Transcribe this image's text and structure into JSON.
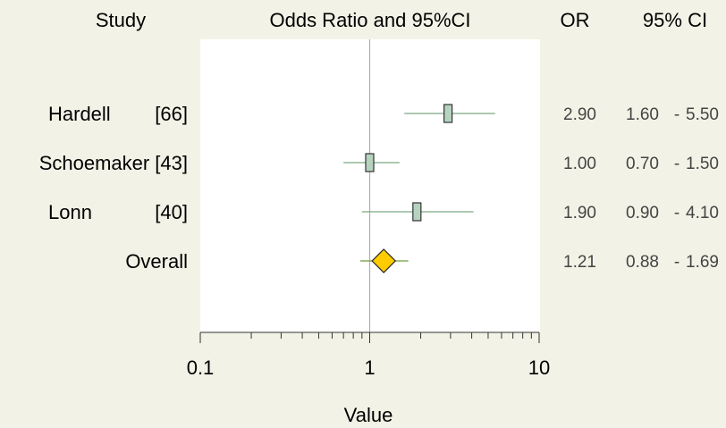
{
  "headers": {
    "study": "Study",
    "plot": "Odds Ratio and 95%CI",
    "or": "OR",
    "ci": "95% CI"
  },
  "chart_data": {
    "type": "forest",
    "xlabel": "Value",
    "x_scale": "log",
    "xlim": [
      0.1,
      10
    ],
    "x_ticks": [
      "0.1",
      "1",
      "10"
    ],
    "reference_line": 1,
    "rows": [
      {
        "study": "Hardell",
        "ref": "[66]",
        "or": 2.9,
        "lo": 1.6,
        "hi": 5.5,
        "or_text": "2.90",
        "lo_text": "1.60",
        "hi_text": "5.50",
        "marker": "square"
      },
      {
        "study": "Schoemaker",
        "ref": "[43]",
        "or": 1.0,
        "lo": 0.7,
        "hi": 1.5,
        "or_text": "1.00",
        "lo_text": "0.70",
        "hi_text": "1.50",
        "marker": "square"
      },
      {
        "study": "Lonn",
        "ref": "[40]",
        "or": 1.9,
        "lo": 0.9,
        "hi": 4.1,
        "or_text": "1.90",
        "lo_text": "0.90",
        "hi_text": "4.10",
        "marker": "square"
      },
      {
        "study": "Overall",
        "ref": "",
        "or": 1.21,
        "lo": 0.88,
        "hi": 1.69,
        "or_text": "1.21",
        "lo_text": "0.88",
        "hi_text": "1.69",
        "marker": "diamond"
      }
    ],
    "colors": {
      "background": "#f2f2e6",
      "plot_area": "#ffffff",
      "square_fill": "#b5d3bf",
      "whisker": "#7aa983",
      "diamond_fill": "#ffcc00",
      "diamond_whisker": "#6e9a3c",
      "reference_line": "#b0b0b0"
    }
  }
}
